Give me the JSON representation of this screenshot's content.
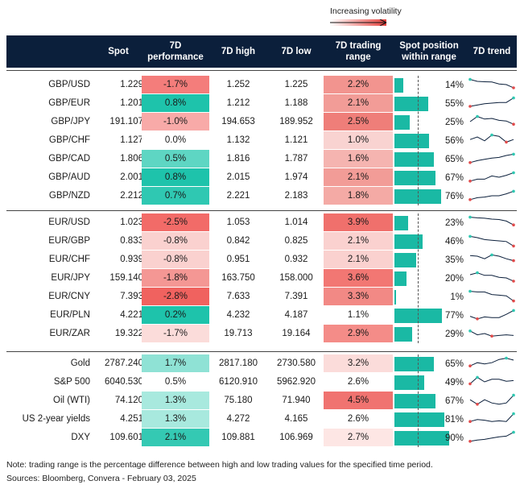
{
  "legend": {
    "label": "Increasing volatility"
  },
  "columns": {
    "spot": "Spot",
    "perf_line1": "7D",
    "perf_line2": "performance",
    "high": "7D high",
    "low": "7D low",
    "range_line1": "7D trading",
    "range_line2": "range",
    "pos_line1": "Spot position",
    "pos_line2": "within range",
    "trend": "7D trend"
  },
  "groups": [
    {
      "rows": [
        {
          "name": "GBP/USD",
          "spot": "1.229",
          "perf": "-1.7%",
          "high": "1.252",
          "low": "1.225",
          "range": "2.2%",
          "pos": "14%",
          "pos_value": 0.14,
          "perf_color": "#f47d7b",
          "range_color": "#f2948f",
          "trend": [
            0.9,
            0.75,
            0.72,
            0.7,
            0.55,
            0.5,
            0.25
          ]
        },
        {
          "name": "GBP/EUR",
          "spot": "1.201",
          "perf": "0.8%",
          "high": "1.212",
          "low": "1.188",
          "range": "2.1%",
          "pos": "55%",
          "pos_value": 0.55,
          "perf_color": "#1ec3ab",
          "range_color": "#f29c97",
          "trend": [
            0.25,
            0.35,
            0.45,
            0.5,
            0.55,
            0.55,
            0.9
          ]
        },
        {
          "name": "GBP/JPY",
          "spot": "191.107",
          "perf": "-1.0%",
          "high": "194.653",
          "low": "189.952",
          "range": "2.5%",
          "pos": "25%",
          "pos_value": 0.25,
          "perf_color": "#f8aaa8",
          "range_color": "#ef7e79",
          "trend": [
            0.5,
            0.9,
            0.7,
            0.75,
            0.6,
            0.55,
            0.3
          ]
        },
        {
          "name": "GBP/CHF",
          "spot": "1.127",
          "perf": "0.0%",
          "high": "1.132",
          "low": "1.121",
          "range": "1.0%",
          "pos": "56%",
          "pos_value": 0.56,
          "perf_color": "#ffffff",
          "range_color": "#f9d3d1",
          "trend": [
            0.55,
            0.75,
            0.45,
            0.9,
            0.8,
            0.35,
            0.55
          ]
        },
        {
          "name": "GBP/CAD",
          "spot": "1.806",
          "perf": "0.5%",
          "high": "1.816",
          "low": "1.787",
          "range": "1.6%",
          "pos": "65%",
          "pos_value": 0.65,
          "perf_color": "#5ed6c3",
          "range_color": "#f5b4b0",
          "trend": [
            0.2,
            0.35,
            0.45,
            0.55,
            0.6,
            0.75,
            0.85
          ]
        },
        {
          "name": "GBP/AUD",
          "spot": "2.001",
          "perf": "0.8%",
          "high": "2.015",
          "low": "1.974",
          "range": "2.1%",
          "pos": "67%",
          "pos_value": 0.67,
          "perf_color": "#1ec3ab",
          "range_color": "#f29c97",
          "trend": [
            0.2,
            0.35,
            0.35,
            0.6,
            0.5,
            0.65,
            0.85
          ]
        },
        {
          "name": "GBP/NZD",
          "spot": "2.212",
          "perf": "0.7%",
          "high": "2.221",
          "low": "2.183",
          "range": "1.8%",
          "pos": "76%",
          "pos_value": 0.76,
          "perf_color": "#2fc8b2",
          "range_color": "#f4aaa5",
          "trend": [
            0.2,
            0.35,
            0.4,
            0.5,
            0.5,
            0.65,
            0.85
          ]
        }
      ]
    },
    {
      "rows": [
        {
          "name": "EUR/USD",
          "spot": "1.023",
          "perf": "-2.5%",
          "high": "1.053",
          "low": "1.014",
          "range": "3.9%",
          "pos": "23%",
          "pos_value": 0.23,
          "perf_color": "#f26b68",
          "range_color": "#f0706c",
          "trend": [
            0.9,
            0.85,
            0.82,
            0.75,
            0.72,
            0.6,
            0.3
          ]
        },
        {
          "name": "EUR/GBP",
          "spot": "0.833",
          "perf": "-0.8%",
          "high": "0.842",
          "low": "0.825",
          "range": "2.1%",
          "pos": "46%",
          "pos_value": 0.46,
          "perf_color": "#fad1cf",
          "range_color": "#fad1cf",
          "trend": [
            0.85,
            0.75,
            0.6,
            0.55,
            0.5,
            0.45,
            0.1
          ]
        },
        {
          "name": "EUR/CHF",
          "spot": "0.939",
          "perf": "-0.8%",
          "high": "0.951",
          "low": "0.932",
          "range": "2.1%",
          "pos": "35%",
          "pos_value": 0.35,
          "perf_color": "#fad1cf",
          "range_color": "#fad1cf",
          "trend": [
            0.8,
            0.75,
            0.55,
            0.85,
            0.75,
            0.55,
            0.4
          ]
        },
        {
          "name": "EUR/JPY",
          "spot": "159.140",
          "perf": "-1.8%",
          "high": "163.750",
          "low": "158.000",
          "range": "3.6%",
          "pos": "20%",
          "pos_value": 0.2,
          "perf_color": "#f49794",
          "range_color": "#f27773",
          "trend": [
            0.75,
            0.9,
            0.7,
            0.7,
            0.55,
            0.5,
            0.25
          ]
        },
        {
          "name": "EUR/CNY",
          "spot": "7.393",
          "perf": "-2.8%",
          "high": "7.633",
          "low": "7.391",
          "range": "3.3%",
          "pos": "1%",
          "pos_value": 0.01,
          "perf_color": "#f0625f",
          "range_color": "#f28985",
          "trend": [
            0.9,
            0.85,
            0.85,
            0.65,
            0.6,
            0.55,
            0.15
          ]
        },
        {
          "name": "EUR/PLN",
          "spot": "4.221",
          "perf": "0.2%",
          "high": "4.232",
          "low": "4.187",
          "range": "1.1%",
          "pos": "77%",
          "pos_value": 0.77,
          "perf_color": "#1ec3ab",
          "range_color": "#ffffff",
          "trend": [
            0.4,
            0.2,
            0.35,
            0.3,
            0.3,
            0.55,
            0.85
          ]
        },
        {
          "name": "EUR/ZAR",
          "spot": "19.322",
          "perf": "-1.7%",
          "high": "19.713",
          "low": "19.164",
          "range": "2.9%",
          "pos": "29%",
          "pos_value": 0.29,
          "perf_color": "#fbdcda",
          "range_color": "#f48c88",
          "trend": [
            0.7,
            0.4,
            0.5,
            0.3,
            0.35,
            0.4,
            0.35
          ]
        }
      ]
    },
    {
      "rows": [
        {
          "name": "Gold",
          "spot": "2787.240",
          "perf": "1.7%",
          "high": "2817.180",
          "low": "2730.580",
          "range": "3.2%",
          "pos": "65%",
          "pos_value": 0.65,
          "perf_color": "#8fe2d5",
          "range_color": "#fbdcda",
          "trend": [
            0.3,
            0.55,
            0.45,
            0.55,
            0.8,
            0.9,
            0.75
          ]
        },
        {
          "name": "S&P 500",
          "spot": "6040.530",
          "perf": "0.5%",
          "high": "6120.910",
          "low": "5962.920",
          "range": "2.6%",
          "pos": "49%",
          "pos_value": 0.49,
          "perf_color": "#ffffff",
          "range_color": "#ffffff",
          "trend": [
            0.35,
            0.85,
            0.5,
            0.7,
            0.7,
            0.55,
            0.6
          ]
        },
        {
          "name": "Oil (WTI)",
          "spot": "74.120",
          "perf": "1.3%",
          "high": "75.180",
          "low": "71.940",
          "range": "4.5%",
          "pos": "67%",
          "pos_value": 0.67,
          "perf_color": "#a8e9de",
          "range_color": "#f07370",
          "trend": [
            0.55,
            0.2,
            0.55,
            0.3,
            0.2,
            0.3,
            0.9
          ]
        },
        {
          "name": "US 2-year yields",
          "spot": "4.251",
          "perf": "1.3%",
          "high": "4.272",
          "low": "4.165",
          "range": "2.6%",
          "pos": "81%",
          "pos_value": 0.81,
          "perf_color": "#a8e9de",
          "range_color": "#ffffff",
          "trend": [
            0.3,
            0.45,
            0.4,
            0.3,
            0.35,
            0.3,
            0.9
          ]
        },
        {
          "name": "DXY",
          "spot": "109.601",
          "perf": "2.1%",
          "high": "109.881",
          "low": "106.969",
          "range": "2.7%",
          "pos": "90%",
          "pos_value": 0.9,
          "perf_color": "#34c9b3",
          "range_color": "#fde6e4",
          "trend": [
            0.2,
            0.3,
            0.35,
            0.45,
            0.55,
            0.6,
            0.9
          ]
        }
      ]
    }
  ],
  "footer": {
    "note": "Note: trading range is the percentage difference between high and low trading values for the specified time period.",
    "sources": "Sources: Bloomberg, Convera - February 03, 2025"
  },
  "colors": {
    "header_bg": "#0b1f3b",
    "bar": "#1ab9a4",
    "trend_line": "#0b1f3b",
    "start_dot": "#2fc8b2",
    "end_dot": "#e24b4b"
  }
}
